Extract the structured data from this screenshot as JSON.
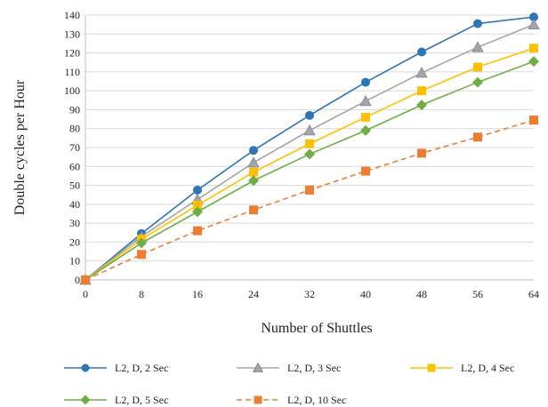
{
  "chart_data": {
    "type": "line",
    "title": "",
    "xlabel": "Number of Shuttles",
    "ylabel": "Double cycles per Hour",
    "x": [
      0,
      8,
      16,
      24,
      32,
      40,
      48,
      56,
      64
    ],
    "xlim": [
      0,
      64
    ],
    "ylim": [
      0,
      140
    ],
    "xticks": [
      "0",
      "8",
      "16",
      "24",
      "32",
      "40",
      "48",
      "56",
      "64"
    ],
    "yticks": [
      "0",
      "10",
      "20",
      "30",
      "40",
      "50",
      "60",
      "70",
      "80",
      "90",
      "100",
      "110",
      "120",
      "130",
      "140"
    ],
    "grid": "horizontal",
    "legend_position": "bottom",
    "series": [
      {
        "name": "L2, D, 2 Sec",
        "color": "#2E75B6",
        "marker": "circle",
        "dash": false,
        "values": [
          0,
          24.5,
          47.5,
          68.5,
          87,
          104.5,
          120.5,
          135.5,
          139
        ]
      },
      {
        "name": "L2, D, 3 Sec",
        "color": "#A5A5A5",
        "marker": "triangle",
        "dash": false,
        "values": [
          0,
          23,
          42.5,
          62,
          79,
          94.5,
          109.5,
          123,
          135
        ]
      },
      {
        "name": "L2, D, 4 Sec",
        "color": "#FFC000",
        "marker": "square",
        "dash": false,
        "values": [
          0,
          21.5,
          39.5,
          57,
          72,
          86,
          100,
          112.5,
          122.5
        ]
      },
      {
        "name": "L2, D, 5 Sec",
        "color": "#70AD47",
        "marker": "diamond",
        "dash": false,
        "values": [
          0,
          19.5,
          36,
          52.5,
          66.5,
          79,
          92.5,
          104.5,
          115.5
        ]
      },
      {
        "name": "L2, D, 10 Sec",
        "color": "#ED7D31",
        "marker": "square",
        "dash": true,
        "values": [
          0,
          13.5,
          26,
          37,
          47.5,
          57.5,
          67,
          75.5,
          84.5
        ]
      }
    ]
  }
}
